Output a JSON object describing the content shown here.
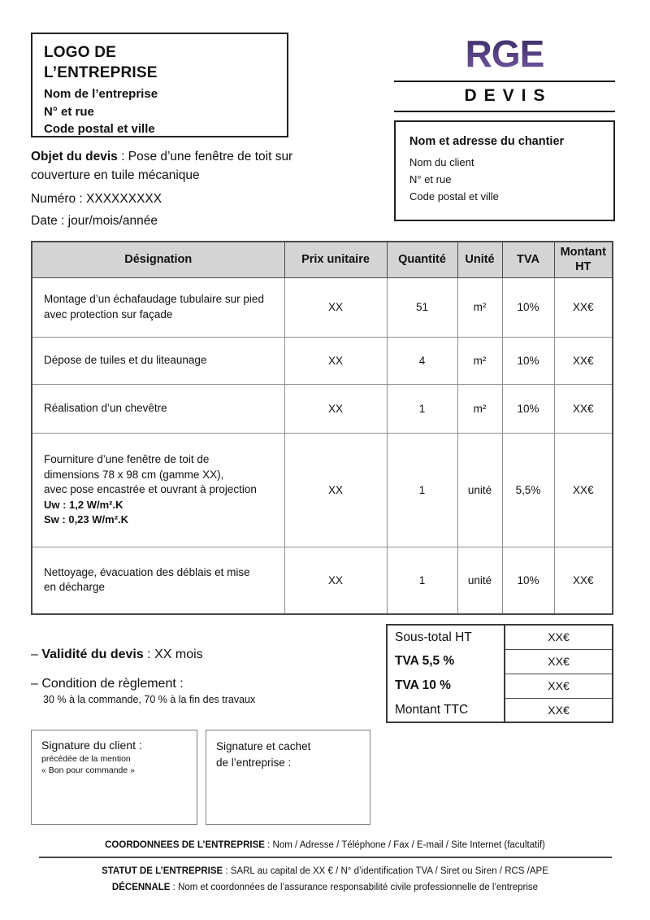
{
  "colors": {
    "rge_gradient_top": "#332a5c",
    "rge_gradient_bottom": "#7656a6",
    "table_header_bg": "#d4d4d4"
  },
  "company_box": {
    "logo": [
      "LOGO DE",
      "L’ENTREPRISE"
    ],
    "lines": [
      "Nom de l’entreprise",
      "N° et rue",
      "Code postal et ville"
    ]
  },
  "header": {
    "rge_logo": "RGE",
    "title": "DEVIS"
  },
  "site_box": {
    "title": "Nom et adresse du chantier",
    "lines": [
      "Nom du client",
      "N° et rue",
      "Code postal et ville"
    ]
  },
  "quote_info": {
    "objet_label": "Objet du devis",
    "objet_rest": " : Pose d’une fenêtre de toit sur couverture en tuile mécanique",
    "numero": "Numéro : XXXXXXXXX",
    "date": "Date : jour/mois/année"
  },
  "items_table": {
    "headers": [
      "Désignation",
      "Prix unitaire",
      "Quantité",
      "Unité",
      "TVA",
      "Montant HT"
    ],
    "rows": [
      {
        "designation": [
          {
            "text": "Montage d’un échafaudage tubulaire sur pied",
            "bold": false
          },
          {
            "text": "avec protection sur façade",
            "bold": false
          }
        ],
        "prix": "XX",
        "quantite": "51",
        "unite": "m²",
        "tva": "10%",
        "montant": "XX€"
      },
      {
        "designation": [
          {
            "text": "Dépose de tuiles et du liteaunage",
            "bold": false
          }
        ],
        "prix": "XX",
        "quantite": "4",
        "unite": "m²",
        "tva": "10%",
        "montant": "XX€"
      },
      {
        "designation": [
          {
            "text": "Réalisation d’un chevêtre",
            "bold": false
          }
        ],
        "prix": "XX",
        "quantite": "1",
        "unite": "m²",
        "tva": "10%",
        "montant": "XX€"
      },
      {
        "designation": [
          {
            "text": "Fourniture d’une fenêtre de toit de",
            "bold": false
          },
          {
            "text": "dimensions 78 x 98 cm (gamme XX),",
            "bold": false
          },
          {
            "text": "avec pose encastrée et ouvrant à projection",
            "bold": false
          },
          {
            "text": "Uw : 1,2 W/m².K",
            "bold": true
          },
          {
            "text": "Sw : 0,23 W/m².K",
            "bold": true
          }
        ],
        "prix": "XX",
        "quantite": "1",
        "unite": "unité",
        "tva": "5,5%",
        "montant": "XX€"
      },
      {
        "designation": [
          {
            "text": "Nettoyage, évacuation des déblais et mise",
            "bold": false
          },
          {
            "text": "en décharge",
            "bold": false
          }
        ],
        "prix": "XX",
        "quantite": "1",
        "unite": "unité",
        "tva": "10%",
        "montant": "XX€"
      }
    ]
  },
  "totals": {
    "rows": [
      {
        "label": "Sous-total HT",
        "bold": false,
        "value": "XX€"
      },
      {
        "label": "TVA 5,5 %",
        "bold": true,
        "value": "XX€"
      },
      {
        "label": "TVA 10 %",
        "bold": true,
        "value": "XX€"
      },
      {
        "label": "Montant TTC",
        "bold": false,
        "value": "XX€"
      }
    ]
  },
  "conditions": {
    "bullet": "–",
    "validite_label": "Validité du devis",
    "validite_rest": " : XX mois",
    "reglement_label": "Condition de règlement :",
    "reglement_detail": "30 % à la commande, 70 % à la fin des travaux"
  },
  "signatures": {
    "client": {
      "title": "Signature du client :",
      "sub": [
        "précédée de la mention",
        "« Bon pour commande »"
      ]
    },
    "company": {
      "lines": [
        "Signature et cachet",
        "de l’entreprise :"
      ]
    }
  },
  "footer": {
    "coordonnees_label": "COORDONNEES DE L’ENTREPRISE",
    "coordonnees_rest": " : Nom / Adresse / Téléphone / Fax / E-mail / Site Internet (facultatif)",
    "statut_label": "STATUT DE L’ENTREPRISE",
    "statut_rest": " : SARL au capital de XX € / N° d’identification TVA / Siret ou Siren / RCS /APE",
    "decennale_label": "DÉCENNALE",
    "decennale_rest": " : Nom et coordonnées de l’assurance responsabilité civile professionnelle de l’entreprise"
  }
}
